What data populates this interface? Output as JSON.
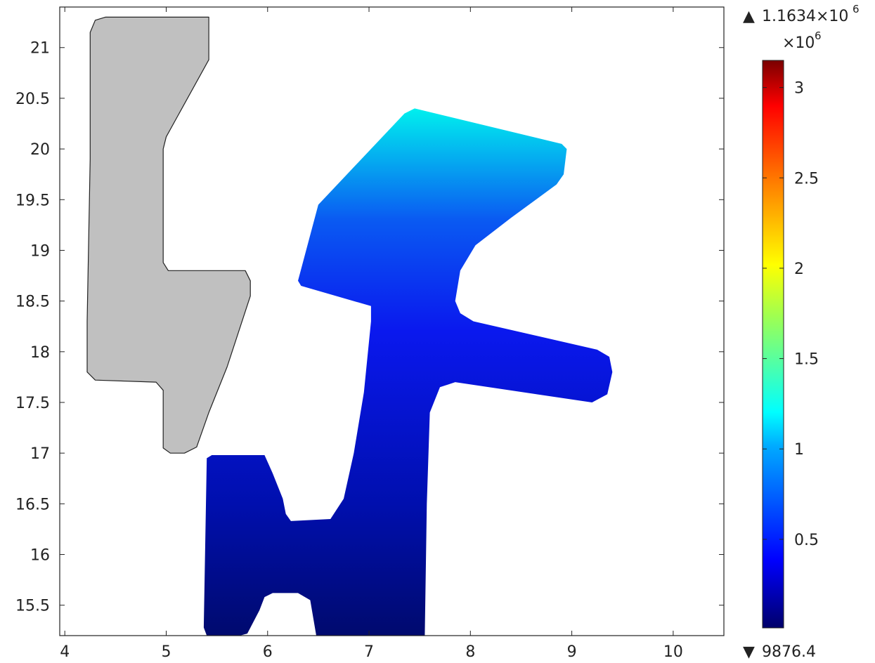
{
  "chart_data": {
    "type": "heatmap",
    "title": "",
    "xlabel": "",
    "ylabel": "",
    "xlim": [
      3.95,
      10.5
    ],
    "ylim": [
      15.2,
      21.4
    ],
    "x_ticks": [
      4,
      5,
      6,
      7,
      8,
      9,
      10
    ],
    "y_ticks": [
      15.5,
      16,
      16.5,
      17,
      17.5,
      18,
      18.5,
      19,
      19.5,
      20,
      20.5,
      21
    ],
    "colormap": "rainbow",
    "colorbar": {
      "max_label": "1.1634×10",
      "max_exp": "6",
      "scale_label": "×10",
      "scale_exp": "6",
      "min_label": "9876.4",
      "ticks": [
        0.5,
        1,
        1.5,
        2,
        2.5,
        3
      ],
      "range": [
        0.0098764,
        3.15
      ],
      "max_marker": "▲",
      "min_marker": "▼"
    },
    "regions": [
      {
        "name": "inactive-domain",
        "fill": "#c0c0c0",
        "outline": [
          [
            4.4,
            21.3
          ],
          [
            5.42,
            21.3
          ],
          [
            5.42,
            20.88
          ],
          [
            5.0,
            20.12
          ],
          [
            4.97,
            20.0
          ],
          [
            4.97,
            18.88
          ],
          [
            5.02,
            18.8
          ],
          [
            5.78,
            18.8
          ],
          [
            5.83,
            18.7
          ],
          [
            5.83,
            18.55
          ],
          [
            5.6,
            17.85
          ],
          [
            5.42,
            17.4
          ],
          [
            5.3,
            17.06
          ],
          [
            5.18,
            17.0
          ],
          [
            5.04,
            17.0
          ],
          [
            4.97,
            17.05
          ],
          [
            4.97,
            17.62
          ],
          [
            4.9,
            17.7
          ],
          [
            4.3,
            17.72
          ],
          [
            4.22,
            17.8
          ],
          [
            4.22,
            18.3
          ],
          [
            4.25,
            19.9
          ],
          [
            4.25,
            21.15
          ],
          [
            4.3,
            21.27
          ]
        ]
      },
      {
        "name": "solution-domain",
        "color_stops": [
          {
            "y": 15.2,
            "color": "#000a6e"
          },
          {
            "y": 16.5,
            "color": "#000fae"
          },
          {
            "y": 18.2,
            "color": "#0a18ee"
          },
          {
            "y": 19.3,
            "color": "#0a5af2"
          },
          {
            "y": 20.4,
            "color": "#00f0ee"
          }
        ],
        "outline": [
          [
            6.48,
            15.2
          ],
          [
            7.55,
            15.2
          ],
          [
            7.57,
            16.5
          ],
          [
            7.6,
            17.4
          ],
          [
            7.7,
            17.65
          ],
          [
            7.85,
            17.7
          ],
          [
            9.2,
            17.5
          ],
          [
            9.35,
            17.58
          ],
          [
            9.4,
            17.8
          ],
          [
            9.37,
            17.95
          ],
          [
            9.25,
            18.02
          ],
          [
            8.03,
            18.3
          ],
          [
            7.9,
            18.38
          ],
          [
            7.85,
            18.5
          ],
          [
            7.9,
            18.8
          ],
          [
            8.05,
            19.05
          ],
          [
            8.4,
            19.32
          ],
          [
            8.85,
            19.65
          ],
          [
            8.92,
            19.75
          ],
          [
            8.95,
            20.0
          ],
          [
            8.9,
            20.05
          ],
          [
            7.45,
            20.4
          ],
          [
            7.35,
            20.35
          ],
          [
            6.5,
            19.45
          ],
          [
            6.3,
            18.7
          ],
          [
            6.33,
            18.65
          ],
          [
            7.02,
            18.45
          ],
          [
            7.02,
            18.3
          ],
          [
            6.95,
            17.6
          ],
          [
            6.85,
            17.0
          ],
          [
            6.75,
            16.55
          ],
          [
            6.62,
            16.35
          ],
          [
            6.23,
            16.33
          ],
          [
            6.18,
            16.4
          ],
          [
            6.15,
            16.55
          ],
          [
            6.05,
            16.8
          ],
          [
            5.97,
            16.98
          ],
          [
            5.45,
            16.98
          ],
          [
            5.4,
            16.95
          ],
          [
            5.37,
            15.28
          ],
          [
            5.4,
            15.2
          ],
          [
            5.65,
            15.18
          ],
          [
            5.8,
            15.22
          ],
          [
            5.92,
            15.45
          ],
          [
            5.97,
            15.58
          ],
          [
            6.05,
            15.62
          ],
          [
            6.3,
            15.62
          ],
          [
            6.42,
            15.55
          ]
        ]
      }
    ]
  }
}
